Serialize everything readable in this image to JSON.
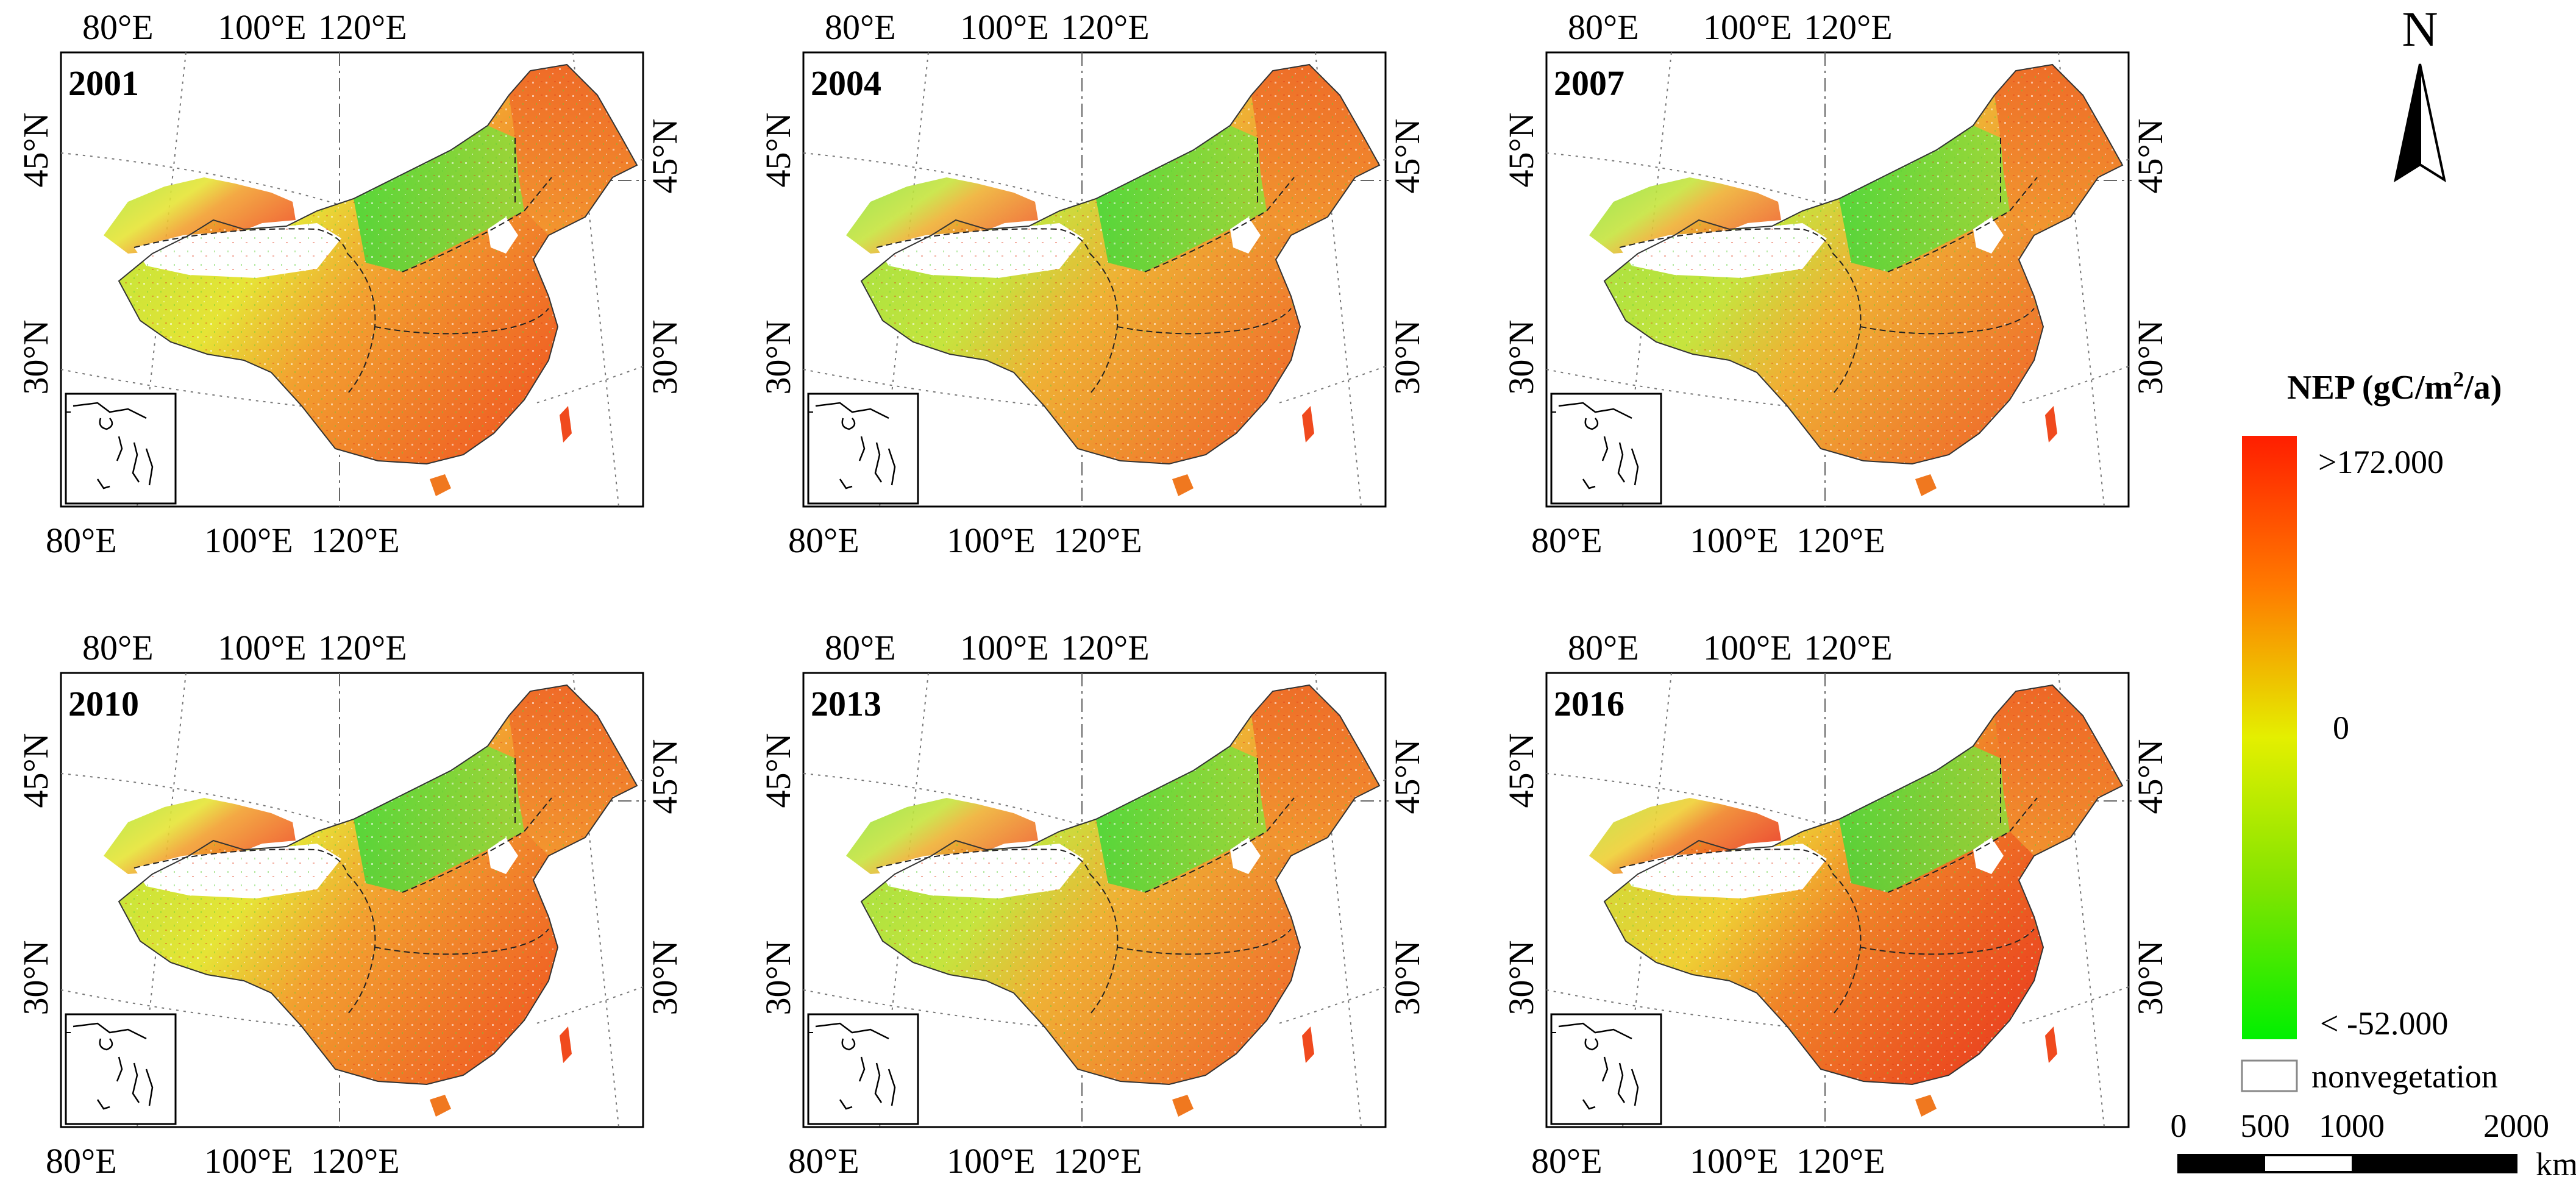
{
  "panels": [
    {
      "year": "2001",
      "style": "base"
    },
    {
      "year": "2004",
      "style": "cool"
    },
    {
      "year": "2007",
      "style": "cool"
    },
    {
      "year": "2010",
      "style": "base"
    },
    {
      "year": "2013",
      "style": "cool"
    },
    {
      "year": "2016",
      "style": "warm"
    }
  ],
  "axes": {
    "top_lon": [
      "80°E",
      "100°E",
      "120°E"
    ],
    "bottom_lon": [
      "80°E",
      "100°E",
      "120°E"
    ],
    "left_lat": [
      "45°N",
      "30°N"
    ],
    "right_lat": [
      "45°N",
      "30°N"
    ]
  },
  "north_arrow": {
    "label": "N"
  },
  "legend": {
    "title_prefix": "NEP (gC/m",
    "title_sup": "2",
    "title_suffix": "/a)",
    "max_label": ">172.000",
    "mid_label": "0",
    "min_label": "< -52.000",
    "nonveg_label": "nonvegetation",
    "colors": {
      "high": "#ff2a00",
      "upper": "#ff8a00",
      "mid": "#e8f000",
      "lower": "#7ee000",
      "low": "#00f000"
    }
  },
  "scale_bar": {
    "labels": [
      "0",
      "500",
      "1000",
      "2000"
    ],
    "unit": "km"
  }
}
